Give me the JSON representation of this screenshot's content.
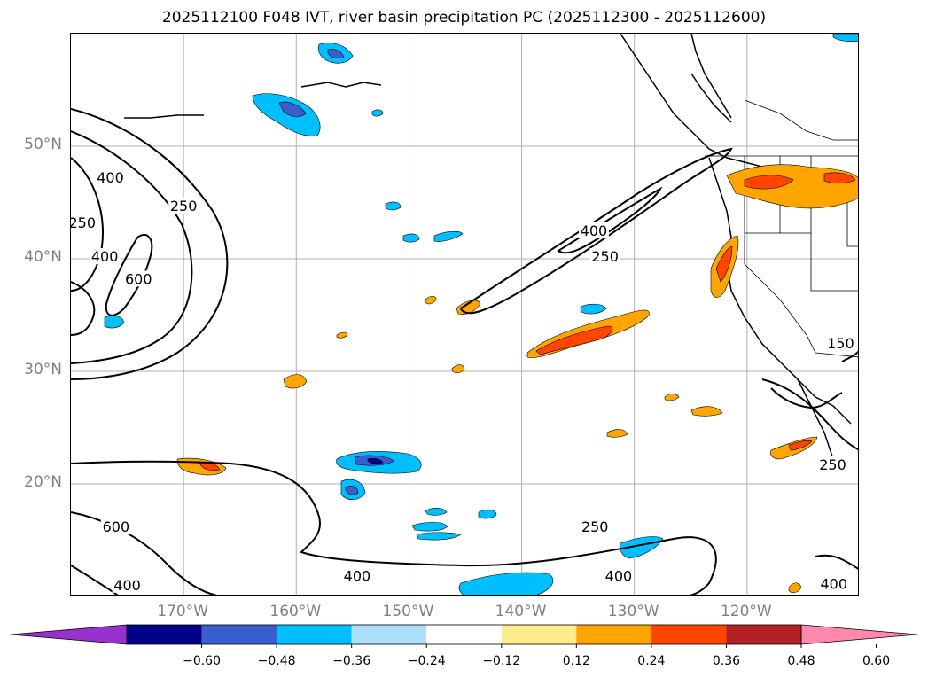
{
  "title": "2025112100 F048 IVT, river basin precipitation PC (2025112300 - 2025112600)",
  "map": {
    "lat_labels": [
      {
        "text": "50°N",
        "lat": 50
      },
      {
        "text": "40°N",
        "lat": 40
      },
      {
        "text": "30°N",
        "lat": 30
      },
      {
        "text": "20°N",
        "lat": 20
      }
    ],
    "lon_labels": [
      {
        "text": "170°W",
        "lon": -170
      },
      {
        "text": "160°W",
        "lon": -160
      },
      {
        "text": "150°W",
        "lon": -150
      },
      {
        "text": "140°W",
        "lon": -140
      },
      {
        "text": "130°W",
        "lon": -130
      },
      {
        "text": "120°W",
        "lon": -120
      }
    ],
    "extent": {
      "lon_min": -180,
      "lon_max": -110,
      "lat_min": 10,
      "lat_max": 60
    },
    "contour_labels": [
      {
        "text": "250",
        "lon": -179,
        "lat": 43
      },
      {
        "text": "400",
        "lon": -176.5,
        "lat": 47
      },
      {
        "text": "250",
        "lon": -170,
        "lat": 44.5
      },
      {
        "text": "400",
        "lon": -177,
        "lat": 40
      },
      {
        "text": "600",
        "lon": -174,
        "lat": 38
      },
      {
        "text": "400",
        "lon": -133.6,
        "lat": 42.3
      },
      {
        "text": "250",
        "lon": -132.6,
        "lat": 40
      },
      {
        "text": "250",
        "lon": -133.5,
        "lat": 16
      },
      {
        "text": "400",
        "lon": -131.4,
        "lat": 11.6
      },
      {
        "text": "400",
        "lon": -154.6,
        "lat": 11.6
      },
      {
        "text": "400",
        "lon": -175,
        "lat": 10.8
      },
      {
        "text": "600",
        "lon": -176,
        "lat": 16
      },
      {
        "text": "250",
        "lon": -112.4,
        "lat": 21.5
      },
      {
        "text": "400",
        "lon": -112.3,
        "lat": 10.9
      },
      {
        "text": "150",
        "lon": -111.7,
        "lat": 32.3
      }
    ]
  },
  "colorbar": {
    "colors": [
      "#9932CC",
      "#00008B",
      "#3A5FCD",
      "#00BFFF",
      "#ADE0FA",
      "#FFFFFF",
      "#FFEC8B",
      "#FFA500",
      "#FF4500",
      "#B22222",
      "#FF88AA"
    ],
    "ticks": [
      "−0.60",
      "−0.48",
      "−0.36",
      "−0.24",
      "−0.12",
      "0.12",
      "0.24",
      "0.36",
      "0.48",
      "0.60"
    ]
  }
}
